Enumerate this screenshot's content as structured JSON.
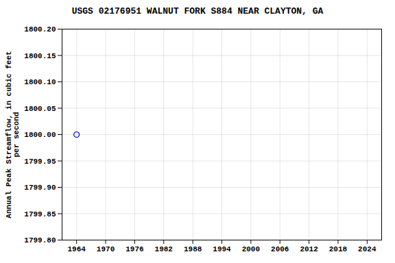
{
  "chart_data": {
    "type": "scatter",
    "title": "USGS 02176951 WALNUT FORK S884 NEAR CLAYTON, GA",
    "ylabel": "Annual Peak Streamflow, in cubic feet\nper second",
    "x": [
      1964
    ],
    "values": [
      1800
    ],
    "color": "#0000cc",
    "marker": "circle",
    "xlim": [
      1961,
      2027
    ],
    "ylim": [
      1799.8,
      1800.2
    ],
    "xticks": [
      1964,
      1970,
      1976,
      1982,
      1988,
      1994,
      2000,
      2006,
      2012,
      2018,
      2024
    ],
    "yticks": [
      {
        "value": 1799.8,
        "label": "1799.80"
      },
      1799.85,
      {
        "value": 1799.9,
        "label": "1799.90"
      },
      1799.95,
      {
        "value": 1800,
        "label": "1800.00"
      },
      1800.05,
      {
        "value": 1800.1,
        "label": "1800.10"
      },
      1800.15,
      {
        "value": 1800.2,
        "label": "1800.20"
      }
    ],
    "grid": true
  }
}
